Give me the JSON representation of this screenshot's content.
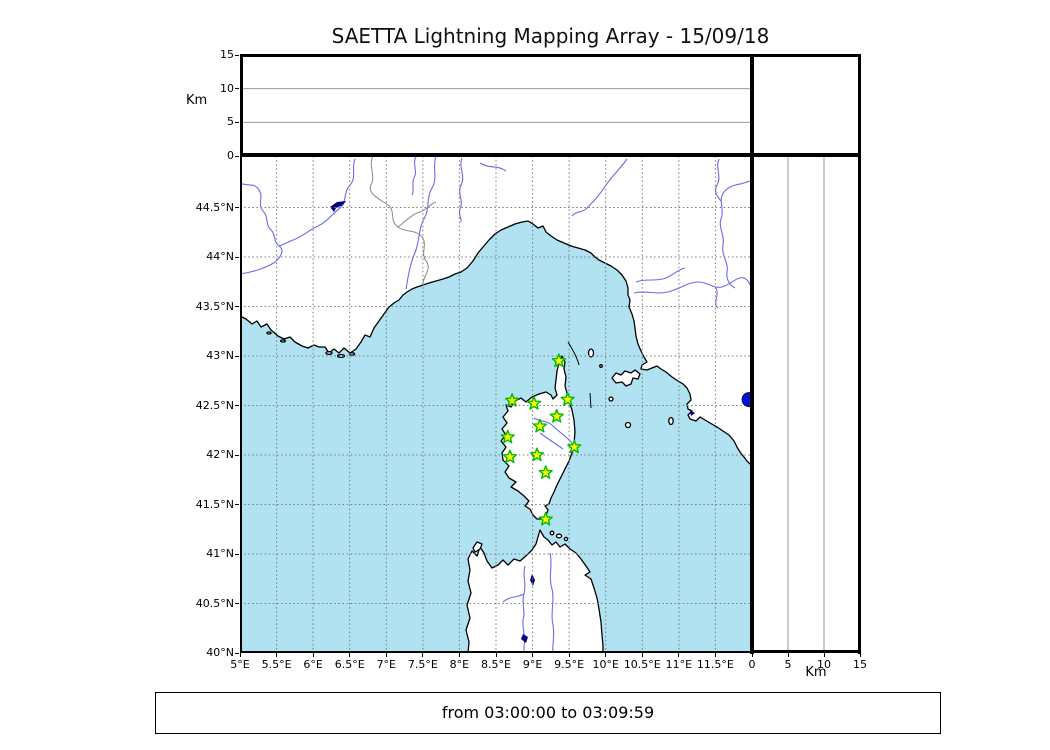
{
  "title": "SAETTA Lightning Mapping Array - 15/09/18",
  "footer": {
    "text": "from 03:00:00 to 03:09:59"
  },
  "altitude_axis": {
    "label": "Km",
    "range": [
      0,
      15
    ],
    "ticks": [
      {
        "label": "0",
        "km": 0
      },
      {
        "label": "5",
        "km": 5
      },
      {
        "label": "10",
        "km": 10
      },
      {
        "label": "15",
        "km": 15
      }
    ],
    "gridlines_km": [
      5,
      10
    ]
  },
  "map": {
    "lon_range": [
      5,
      12
    ],
    "lat_range": [
      40,
      45
    ],
    "grid_step_deg": 0.5,
    "lon_ticks": [
      {
        "label": "5°E",
        "lon": 5
      },
      {
        "label": "5.5°E",
        "lon": 5.5
      },
      {
        "label": "6°E",
        "lon": 6
      },
      {
        "label": "6.5°E",
        "lon": 6.5
      },
      {
        "label": "7°E",
        "lon": 7
      },
      {
        "label": "7.5°E",
        "lon": 7.5
      },
      {
        "label": "8°E",
        "lon": 8
      },
      {
        "label": "8.5°E",
        "lon": 8.5
      },
      {
        "label": "9°E",
        "lon": 9
      },
      {
        "label": "9.5°E",
        "lon": 9.5
      },
      {
        "label": "10°E",
        "lon": 10
      },
      {
        "label": "10.5°E",
        "lon": 10.5
      },
      {
        "label": "11°E",
        "lon": 11
      },
      {
        "label": "11.5°E",
        "lon": 11.5
      }
    ],
    "lat_ticks": [
      {
        "label": "44.5°N",
        "lat": 44.5
      },
      {
        "label": "44°N",
        "lat": 44
      },
      {
        "label": "43.5°N",
        "lat": 43.5
      },
      {
        "label": "43°N",
        "lat": 43
      },
      {
        "label": "42.5°N",
        "lat": 42.5
      },
      {
        "label": "42°N",
        "lat": 42
      },
      {
        "label": "41.5°N",
        "lat": 41.5
      },
      {
        "label": "41°N",
        "lat": 41
      },
      {
        "label": "40.5°N",
        "lat": 40.5
      },
      {
        "label": "40°N",
        "lat": 40
      }
    ]
  },
  "stations": [
    {
      "lon": 9.36,
      "lat": 42.95
    },
    {
      "lon": 8.72,
      "lat": 42.55
    },
    {
      "lon": 9.02,
      "lat": 42.52
    },
    {
      "lon": 9.48,
      "lat": 42.56
    },
    {
      "lon": 9.33,
      "lat": 42.39
    },
    {
      "lon": 9.1,
      "lat": 42.29
    },
    {
      "lon": 8.66,
      "lat": 42.18
    },
    {
      "lon": 9.57,
      "lat": 42.08
    },
    {
      "lon": 9.06,
      "lat": 42.0
    },
    {
      "lon": 8.69,
      "lat": 41.98
    },
    {
      "lon": 9.18,
      "lat": 41.82
    },
    {
      "lon": 9.18,
      "lat": 41.35
    }
  ],
  "event_point": {
    "lon": 11.96,
    "lat": 42.56
  },
  "colors": {
    "sea": "#b0e2f2",
    "land": "#ffffff",
    "coast": "#000000",
    "river": "#6b6bec",
    "country_border": "#888888",
    "lake": "#000080",
    "map_grid": "#7a7a7a",
    "panel_grid": "#999999",
    "station_fill": "#ffff00",
    "station_stroke": "#00bb00",
    "event_fill": "#0018cc",
    "event_stroke": "#000060"
  },
  "chart_data": {
    "type": "scatter",
    "title": "SAETTA Lightning Mapping Array - 15/09/18",
    "time_window": "from 03:00:00 to 03:09:59",
    "panels": [
      {
        "name": "altitude-vs-longitude",
        "ylabel": "Km",
        "ylim": [
          0,
          15
        ],
        "xlim": [
          5,
          12
        ],
        "gridlines": [
          5,
          10
        ],
        "points": []
      },
      {
        "name": "plan-view-map",
        "xlim": [
          5,
          12
        ],
        "ylim": [
          40,
          45
        ],
        "grid": "0.5° dotted",
        "station_marker": "green-yellow star",
        "n_stations": 12,
        "points": [
          {
            "lon": 11.96,
            "lat": 42.56,
            "color": "#0018cc"
          }
        ]
      },
      {
        "name": "altitude-vs-latitude",
        "xlabel": "Km",
        "xlim": [
          0,
          15
        ],
        "ylim": [
          40,
          45
        ],
        "gridlines": [
          5,
          10
        ],
        "points": []
      }
    ]
  }
}
